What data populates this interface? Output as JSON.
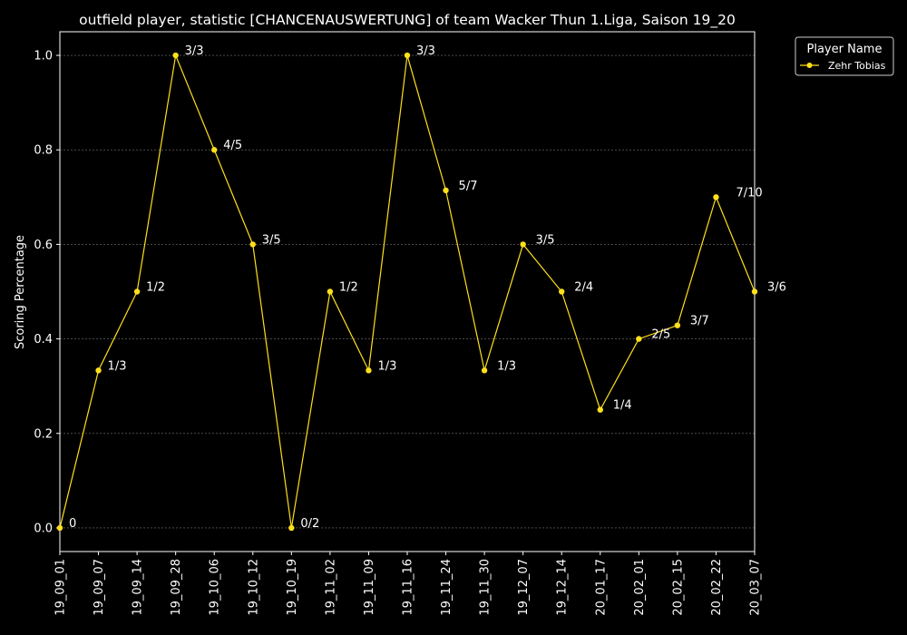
{
  "chart_data": {
    "type": "line",
    "title": "outfield player, statistic [CHANCENAUSWERTUNG] of team Wacker Thun 1.Liga, Saison 19_20",
    "xlabel": "",
    "ylabel": "Scoring Percentage",
    "ylim": [
      -0.05,
      1.05
    ],
    "yticks": [
      0.0,
      0.2,
      0.4,
      0.6,
      0.8,
      1.0
    ],
    "ytick_labels": [
      "0.0",
      "0.2",
      "0.4",
      "0.6",
      "0.8",
      "1.0"
    ],
    "grid": true,
    "legend": {
      "title": "Player Name",
      "placement": "top-right-outside"
    },
    "categories": [
      "19_09_01",
      "19_09_07",
      "19_09_14",
      "19_09_28",
      "19_10_06",
      "19_10_12",
      "19_10_19",
      "19_11_02",
      "19_11_09",
      "19_11_16",
      "19_11_24",
      "19_11_30",
      "19_12_07",
      "19_12_14",
      "20_01_17",
      "20_02_01",
      "20_02_15",
      "20_02_22",
      "20_03_07"
    ],
    "series": [
      {
        "name": "Zehr Tobias",
        "color": "#ffe01a",
        "values": [
          0.0,
          0.3333,
          0.5,
          1.0,
          0.8,
          0.6,
          0.0,
          0.5,
          0.3333,
          1.0,
          0.7143,
          0.3333,
          0.6,
          0.5,
          0.25,
          0.4,
          0.4286,
          0.7,
          0.5
        ],
        "labels": [
          "0",
          "1/3",
          "1/2",
          "3/3",
          "4/5",
          "3/5",
          "0/2",
          "1/2",
          "1/3",
          "3/3",
          "5/7",
          "1/3",
          "3/5",
          "2/4",
          "1/4",
          "2/5",
          "3/7",
          "7/10",
          "3/6"
        ]
      }
    ]
  }
}
